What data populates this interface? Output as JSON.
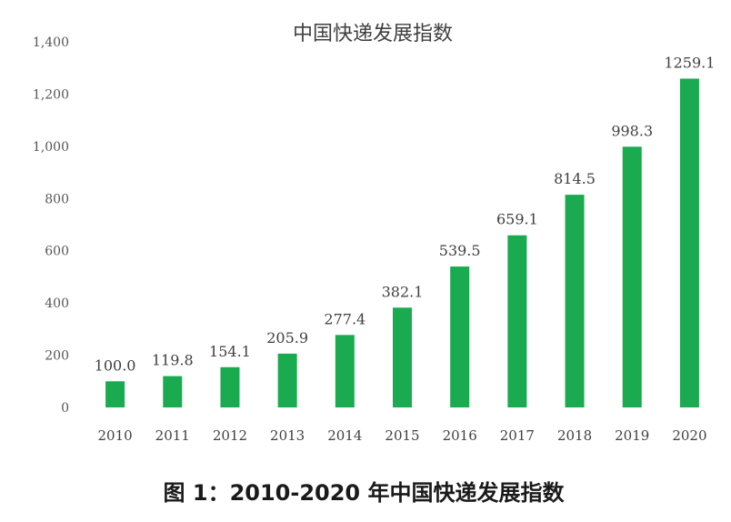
{
  "chart_data": {
    "type": "bar",
    "title": "中国快递发展指数",
    "caption": "图 1：2010-2020 年中国快递发展指数",
    "categories": [
      "2010",
      "2011",
      "2012",
      "2013",
      "2014",
      "2015",
      "2016",
      "2017",
      "2018",
      "2019",
      "2020"
    ],
    "values": [
      100.0,
      119.8,
      154.1,
      205.9,
      277.4,
      382.1,
      539.5,
      659.1,
      814.5,
      998.3,
      1259.1
    ],
    "value_labels": [
      "100.0",
      "119.8",
      "154.1",
      "205.9",
      "277.4",
      "382.1",
      "539.5",
      "659.1",
      "814.5",
      "998.3",
      "1259.1"
    ],
    "ylim": [
      0,
      1400
    ],
    "yticks": [
      "0",
      "200",
      "400",
      "600",
      "800",
      "1,000",
      "1,200",
      "1,400"
    ],
    "ytick_values": [
      0,
      200,
      400,
      600,
      800,
      1000,
      1200,
      1400
    ],
    "grid": false,
    "legend": "none",
    "bar_color": "#1aaa4f"
  }
}
